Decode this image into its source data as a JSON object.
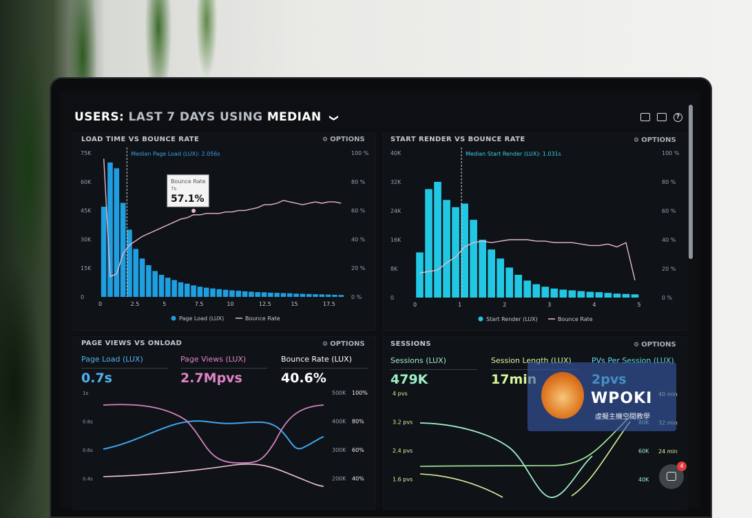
{
  "header": {
    "prefix": "USERS:",
    "part1": "LAST 7 DAYS",
    "part2": "USING",
    "part3": "MEDIAN",
    "chevron": "❯"
  },
  "panels": {
    "p1": {
      "title": "LOAD TIME VS BOUNCE RATE",
      "options": "OPTIONS",
      "left_ticks": [
        "75K",
        "60K",
        "45K",
        "30K",
        "15K",
        "0"
      ],
      "right_ticks": [
        "100 %",
        "80 %",
        "60 %",
        "40 %",
        "20 %",
        "0 %"
      ],
      "x_ticks": [
        "0",
        "2.5",
        "5",
        "7.5",
        "10",
        "12.5",
        "15",
        "17.5"
      ],
      "median_label": "Median Page Load (LUX): 2.056s",
      "tooltip": {
        "title": "Bounce Rate",
        "sub": "7s",
        "value": "57.1%"
      },
      "legend": [
        "Page Load (LUX)",
        "Bounce Rate"
      ]
    },
    "p2": {
      "title": "START RENDER VS BOUNCE RATE",
      "options": "OPTIONS",
      "left_ticks": [
        "40K",
        "32K",
        "24K",
        "16K",
        "8K",
        "0"
      ],
      "right_ticks": [
        "100 %",
        "80 %",
        "60 %",
        "40 %",
        "20 %",
        "0 %"
      ],
      "x_ticks": [
        "0",
        "1",
        "2",
        "3",
        "4",
        "5"
      ],
      "median_label": "Median Start Render (LUX): 1.031s",
      "legend": [
        "Start Render (LUX)",
        "Bounce Rate"
      ]
    },
    "p3": {
      "title": "PAGE VIEWS VS ONLOAD",
      "options": "OPTIONS",
      "kpis": [
        {
          "label": "Page Load (LUX)",
          "value": "0.7s"
        },
        {
          "label": "Page Views (LUX)",
          "value": "2.7Mpvs"
        },
        {
          "label": "Bounce Rate (LUX)",
          "value": "40.6%"
        }
      ],
      "left_ticks": [
        "1s",
        "0.8s",
        "0.6s",
        "0.4s"
      ],
      "right_ticks_a": [
        "500K",
        "400K",
        "300K",
        "200K"
      ],
      "right_ticks_b": [
        "100%",
        "80%",
        "60%",
        "40%"
      ]
    },
    "p4": {
      "title": "SESSIONS",
      "options": "OPTIONS",
      "kpis": [
        {
          "label": "Sessions (LUX)",
          "value": "479K"
        },
        {
          "label": "Session Length (LUX)",
          "value": "17min"
        },
        {
          "label": "PVs Per Session (LUX)",
          "value": "2pvs"
        }
      ],
      "left_ticks": [
        "4 pvs",
        "3.2 pvs",
        "2.4 pvs",
        "1.6 pvs"
      ],
      "right_ticks_a": [
        "80K",
        "60K",
        "40K"
      ],
      "right_ticks_b": [
        "40 min",
        "32 min",
        "24 min"
      ]
    }
  },
  "watermark": {
    "name": "WPOKI",
    "sub": "虛擬主機空間教學"
  },
  "chat_badge": "4",
  "colors": {
    "bar_blue": "#1f9ee0",
    "bar_cyan": "#22c7e3",
    "bounce_pink": "#e7b9c9",
    "kpi_blue": "#4fb3f0",
    "kpi_pink": "#e084c6",
    "kpi_white": "#ffffff",
    "kpi_green": "#9ff0c7",
    "kpi_lime": "#d7f79a",
    "kpi_cyan": "#5fe0e6"
  },
  "chart_data": [
    {
      "type": "bar",
      "title": "LOAD TIME VS BOUNCE RATE",
      "x": [
        0.25,
        0.75,
        1.25,
        1.75,
        2.25,
        2.75,
        3.25,
        3.75,
        4.25,
        4.75,
        5.25,
        5.75,
        6.25,
        6.75,
        7.25,
        7.75,
        8.25,
        8.75,
        9.25,
        9.75,
        10.25,
        10.75,
        11.25,
        11.75,
        12.25,
        12.75,
        13.25,
        13.75,
        14.25,
        14.75,
        15.25,
        15.75,
        16.25,
        16.75,
        17.25,
        17.75,
        18.25,
        18.75
      ],
      "series": [
        {
          "name": "Page Load (LUX)",
          "values": [
            47000,
            70000,
            67000,
            49000,
            35000,
            25000,
            20000,
            16500,
            13500,
            11500,
            10000,
            8800,
            7600,
            6900,
            6000,
            5300,
            4800,
            4400,
            4000,
            3700,
            3400,
            3200,
            2900,
            2700,
            2500,
            2400,
            2200,
            2100,
            2000,
            1900,
            1700,
            1600,
            1500,
            1400,
            1300,
            1200,
            1100,
            1000
          ]
        },
        {
          "name": "Bounce Rate",
          "values": [
            96,
            14,
            16,
            30,
            36,
            39,
            42,
            44,
            46,
            48,
            50,
            52,
            54,
            55,
            57.1,
            57,
            58,
            58,
            58,
            59,
            59,
            60,
            60,
            61,
            62,
            64,
            64,
            65,
            67,
            66,
            65,
            64,
            65,
            66,
            65,
            66,
            66,
            65
          ]
        }
      ],
      "ylim": [
        0,
        75000
      ],
      "y2lim": [
        0,
        100
      ],
      "xlim": [
        0,
        19
      ],
      "median": 2.056
    },
    {
      "type": "bar",
      "title": "START RENDER VS BOUNCE RATE",
      "x": [
        0.1,
        0.3,
        0.5,
        0.7,
        0.9,
        1.1,
        1.3,
        1.5,
        1.7,
        1.9,
        2.1,
        2.3,
        2.5,
        2.7,
        2.9,
        3.1,
        3.3,
        3.5,
        3.7,
        3.9,
        4.1,
        4.3,
        4.5,
        4.7,
        4.9
      ],
      "series": [
        {
          "name": "Start Render (LUX)",
          "values": [
            12500,
            30000,
            32000,
            27000,
            25000,
            26000,
            21500,
            16000,
            13300,
            10800,
            8300,
            6300,
            4700,
            3700,
            3000,
            2500,
            2200,
            2000,
            1800,
            1600,
            1500,
            1300,
            1100,
            1000,
            900
          ]
        },
        {
          "name": "Bounce Rate",
          "values": [
            17,
            18,
            19,
            24,
            28,
            35,
            38,
            39,
            38,
            39,
            40,
            40,
            40,
            39,
            39,
            38,
            38,
            38,
            37,
            36,
            36,
            37,
            35,
            38,
            12
          ]
        }
      ],
      "ylim": [
        0,
        40000
      ],
      "y2lim": [
        0,
        100
      ],
      "xlim": [
        0,
        5.1
      ],
      "median": 1.031
    }
  ]
}
